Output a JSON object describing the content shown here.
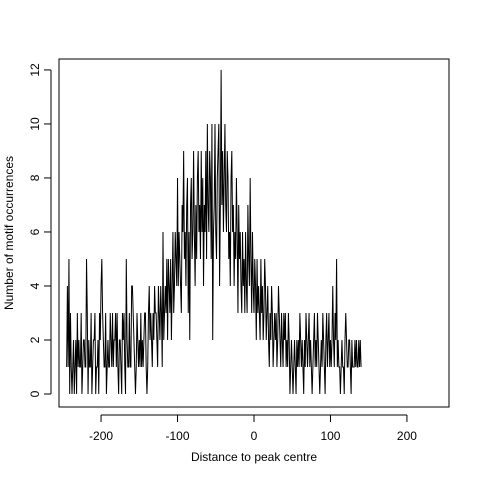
{
  "chart_data": {
    "type": "line",
    "title": "",
    "xlabel": "Distance to peak centre",
    "ylabel": "Number of motif occurrences",
    "xlim": [
      -255,
      255
    ],
    "ylim": [
      0,
      12.5
    ],
    "xticks": [
      -200,
      -100,
      0,
      100,
      200
    ],
    "xtick_labels": [
      "-200",
      "-100",
      "0",
      "100",
      "200"
    ],
    "yticks": [
      0,
      2,
      4,
      6,
      8,
      10,
      12
    ],
    "ytick_labels": [
      "0",
      "2",
      "4",
      "6",
      "8",
      "10",
      "12"
    ],
    "grid": false,
    "line_color": "#000000",
    "series": [
      {
        "x_start": -245,
        "x_step": 1,
        "values": [
          1,
          4,
          1,
          5,
          0,
          3,
          1,
          0,
          1,
          2,
          0,
          1,
          2,
          0,
          3,
          1,
          2,
          1,
          1,
          3,
          0,
          1,
          2,
          2,
          1,
          1,
          5,
          3,
          0,
          2,
          1,
          1,
          3,
          0,
          1,
          2,
          2,
          3,
          0,
          1,
          1,
          2,
          0,
          3,
          2,
          4,
          5,
          3,
          2,
          1,
          1,
          3,
          0,
          1,
          2,
          1,
          1,
          3,
          2,
          1,
          3,
          1,
          2,
          2,
          3,
          1,
          3,
          1,
          0,
          2,
          2,
          1,
          0,
          3,
          2,
          3,
          1,
          0,
          5,
          2,
          1,
          1,
          3,
          1,
          1,
          4,
          4,
          3,
          2,
          1,
          0,
          1,
          3,
          2,
          1,
          2,
          1,
          3,
          1,
          2,
          1,
          2,
          3,
          3,
          1,
          0,
          1,
          3,
          4,
          2,
          3,
          2,
          1,
          3,
          2,
          4,
          3,
          3,
          2,
          1,
          4,
          3,
          2,
          4,
          3,
          1,
          6,
          2,
          3,
          4,
          3,
          5,
          2,
          5,
          4,
          3,
          5,
          2,
          4,
          6,
          3,
          4,
          6,
          5,
          4,
          8,
          4,
          6,
          5,
          4,
          3,
          7,
          6,
          9,
          5,
          6,
          4,
          7,
          8,
          3,
          6,
          2,
          7,
          8,
          5,
          6,
          9,
          6,
          4,
          7,
          5,
          8,
          9,
          6,
          7,
          5,
          9,
          6,
          8,
          4,
          7,
          6,
          9,
          5,
          10,
          7,
          6,
          9,
          8,
          5,
          10,
          2,
          6,
          7,
          10,
          6,
          5,
          8,
          9,
          10,
          4,
          7,
          12,
          7,
          9,
          6,
          8,
          10,
          7,
          6,
          9,
          8,
          5,
          6,
          4,
          8,
          9,
          6,
          7,
          4,
          6,
          5,
          8,
          6,
          3,
          7,
          5,
          6,
          4,
          3,
          6,
          4,
          5,
          3,
          6,
          4,
          3,
          7,
          5,
          4,
          8,
          5,
          3,
          6,
          4,
          3,
          5,
          4,
          2,
          5,
          3,
          4,
          3,
          2,
          5,
          3,
          4,
          2,
          3,
          5,
          4,
          2,
          3,
          4,
          2,
          1,
          3,
          2,
          4,
          3,
          1,
          2,
          3,
          2,
          3,
          1,
          2,
          4,
          3,
          2,
          1,
          3,
          2,
          1,
          3,
          2,
          3,
          1,
          2,
          1,
          3,
          2,
          0,
          1,
          2,
          1,
          0,
          1,
          2,
          1,
          0,
          2,
          1,
          2,
          1,
          3,
          2,
          1,
          2,
          1,
          0,
          2,
          1,
          3,
          2,
          1,
          2,
          3,
          1,
          2,
          1,
          0,
          1,
          2,
          3,
          1,
          2,
          1,
          3,
          2,
          1,
          0,
          1,
          2,
          1,
          3,
          2,
          1,
          0,
          2,
          3,
          1,
          2,
          3,
          1,
          2,
          1,
          2,
          4,
          2,
          1,
          3,
          2,
          5,
          1,
          2,
          1,
          1,
          0,
          1,
          2,
          1,
          1,
          0,
          2,
          3,
          2,
          1,
          1,
          2,
          2,
          1,
          0,
          2,
          1,
          1,
          1,
          2,
          1,
          2,
          1,
          1,
          2,
          1,
          2,
          1
        ]
      }
    ]
  }
}
